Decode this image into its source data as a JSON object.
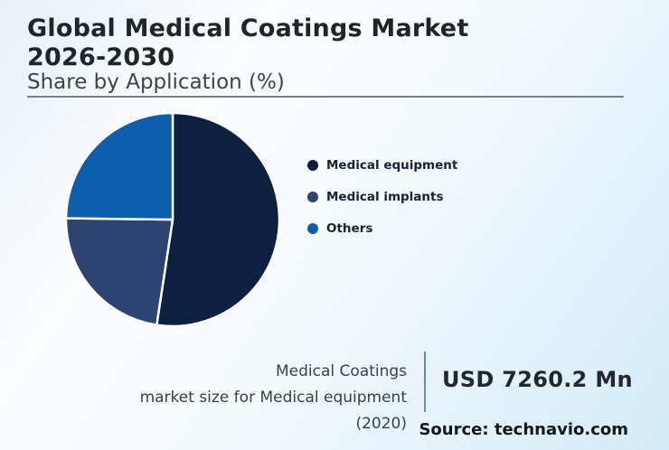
{
  "header": {
    "title_line1": "Global Medical Coatings Market",
    "title_line2": "2026-2030",
    "subtitle": "Share by Application (%)"
  },
  "chart_data": {
    "type": "pie",
    "title": "Global Medical Coatings Market 2026-2030",
    "subtitle": "Share by Application (%)",
    "categories": [
      "Medical equipment",
      "Medical implants",
      "Others"
    ],
    "values": [
      52.4,
      22.8,
      24.8
    ],
    "unit": "%",
    "colors": [
      "#0d2040",
      "#2d4372",
      "#0d5fae"
    ],
    "legend_position": "right",
    "start_angle": "top, clockwise",
    "slice_border_color": "#ffffff"
  },
  "footer": {
    "stat_label_line1": "Medical Coatings",
    "stat_label_line2": "market size for Medical equipment (2020)",
    "stat_value": "USD 7260.2 Mn",
    "source": "Source: technavio.com"
  }
}
